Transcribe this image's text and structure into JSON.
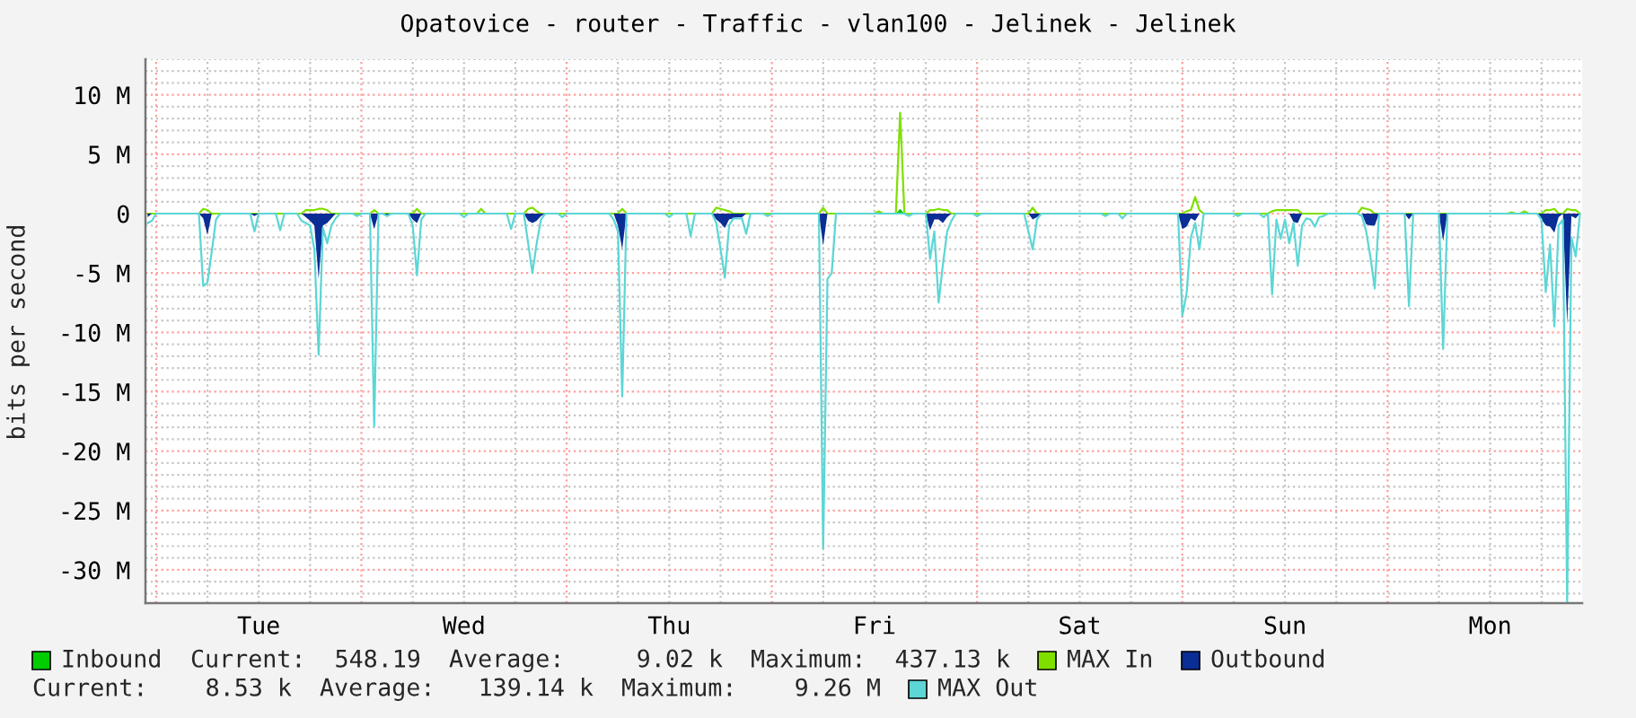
{
  "chart_data": {
    "type": "area",
    "title": "Opatovice - router - Traffic - vlan100 - Jelinek - Jelinek",
    "ylabel": "bits per second",
    "annotations": [
      "Current:  548.19",
      "Average:     9.02 k",
      "Maximum:  437.13 k",
      "Current:    8.53 k",
      "Average:   139.14 k",
      "Maximum:    9.26 M"
    ],
    "categories": [
      null,
      null,
      null,
      null,
      null,
      null,
      null,
      null,
      null,
      null,
      null,
      null,
      null,
      null,
      null,
      null,
      null,
      null,
      null,
      null,
      null,
      null,
      null,
      null,
      null,
      null,
      "Tue",
      null,
      null,
      null,
      null,
      null,
      null,
      null,
      null,
      null,
      null,
      null,
      null,
      null,
      null,
      null,
      null,
      null,
      null,
      null,
      null,
      null,
      null,
      null,
      null,
      null,
      null,
      null,
      null,
      null,
      null,
      null,
      null,
      null,
      null,
      null,
      null,
      null,
      null,
      null,
      null,
      null,
      null,
      null,
      null,
      null,
      null,
      null,
      "Wed",
      null,
      null,
      null,
      null,
      null,
      null,
      null,
      null,
      null,
      null,
      null,
      null,
      null,
      null,
      null,
      null,
      null,
      null,
      null,
      null,
      null,
      null,
      null,
      null,
      null,
      null,
      null,
      null,
      null,
      null,
      null,
      null,
      null,
      null,
      null,
      null,
      null,
      null,
      null,
      null,
      null,
      null,
      null,
      null,
      null,
      null,
      null,
      "Thu",
      null,
      null,
      null,
      null,
      null,
      null,
      null,
      null,
      null,
      null,
      null,
      null,
      null,
      null,
      null,
      null,
      null,
      null,
      null,
      null,
      null,
      null,
      null,
      null,
      null,
      null,
      null,
      null,
      null,
      null,
      null,
      null,
      null,
      null,
      null,
      null,
      null,
      null,
      null,
      null,
      null,
      null,
      null,
      null,
      null,
      null,
      null,
      "Fri",
      null,
      null,
      null,
      null,
      null,
      null,
      null,
      null,
      null,
      null,
      null,
      null,
      null,
      null,
      null,
      null,
      null,
      null,
      null,
      null,
      null,
      null,
      null,
      null,
      null,
      null,
      null,
      null,
      null,
      null,
      null,
      null,
      null,
      null,
      null,
      null,
      null,
      null,
      null,
      null,
      null,
      null,
      null,
      null,
      null,
      null,
      null,
      "Sat",
      null,
      null,
      null,
      null,
      null,
      null,
      null,
      null,
      null,
      null,
      null,
      null,
      null,
      null,
      null,
      null,
      null,
      null,
      null,
      null,
      null,
      null,
      null,
      null,
      null,
      null,
      null,
      null,
      null,
      null,
      null,
      null,
      null,
      null,
      null,
      null,
      null,
      null,
      null,
      null,
      null,
      null,
      null,
      null,
      null,
      null,
      null,
      "Sun",
      null,
      null,
      null,
      null,
      null,
      null,
      null,
      null,
      null,
      null,
      null,
      null,
      null,
      null,
      null,
      null,
      null,
      null,
      null,
      null,
      null,
      null,
      null,
      null,
      null,
      null,
      null,
      null,
      null,
      null,
      null,
      null,
      null,
      null,
      null,
      null,
      null,
      null,
      null,
      null,
      null,
      null,
      null,
      null,
      null,
      null,
      null,
      "Mon",
      null,
      null,
      null,
      null,
      null,
      null,
      null,
      null,
      null,
      null,
      null,
      null,
      null,
      null,
      null,
      null,
      null,
      null,
      null,
      null,
      null
    ],
    "ylim": [
      -32.8,
      13
    ],
    "yticks": [
      {
        "value": -30,
        "label": "-30 M"
      },
      {
        "value": -25,
        "label": "-25 M"
      },
      {
        "value": -20,
        "label": "-20 M"
      },
      {
        "value": -15,
        "label": "-15 M"
      },
      {
        "value": -10,
        "label": "-10 M"
      },
      {
        "value": -5,
        "label": "-5 M"
      },
      0,
      {
        "value": 5,
        "label": "5 M"
      },
      {
        "value": 10,
        "label": "10 M"
      }
    ],
    "grid": true,
    "legend": "bottom",
    "series": [
      {
        "name": "Inbound",
        "color": "#00cc00",
        "values": [
          0,
          0,
          0,
          0,
          0,
          0,
          0,
          0,
          0,
          0,
          0,
          0,
          0,
          0,
          0,
          0,
          0,
          0,
          0,
          0,
          0,
          0,
          0,
          0,
          0,
          0,
          0,
          0,
          0,
          0,
          0,
          0,
          0,
          0,
          0,
          0,
          0,
          0,
          0,
          0,
          0,
          0,
          0,
          0,
          0,
          0,
          0,
          0,
          0,
          0,
          0,
          0,
          0,
          0,
          0,
          0,
          0,
          0,
          0,
          0,
          0,
          0,
          0,
          0,
          0,
          0,
          0,
          0,
          0,
          0,
          0,
          0,
          0,
          0,
          0,
          0,
          0,
          0,
          0,
          0,
          0,
          0,
          0,
          0,
          0,
          0,
          0,
          0,
          0,
          0,
          0,
          0,
          0,
          0,
          0,
          0,
          0,
          0,
          0,
          0,
          0,
          0,
          0,
          0,
          0,
          0,
          0,
          0,
          0,
          0,
          0,
          0,
          0,
          0,
          0,
          0,
          0,
          0,
          0,
          0,
          0,
          0,
          0,
          0,
          0,
          0,
          0,
          0,
          0,
          0,
          0,
          0,
          0,
          0,
          0,
          0,
          0,
          0,
          0,
          0,
          0,
          0,
          0,
          0,
          0,
          0,
          0,
          0,
          0,
          0,
          0,
          0,
          0,
          0,
          0,
          0,
          0,
          0,
          0,
          0,
          0,
          0,
          0,
          0,
          0,
          0,
          0,
          0,
          0,
          0,
          0,
          0,
          0,
          0,
          0,
          0,
          0.4,
          0,
          0,
          0,
          0,
          0,
          0,
          0,
          0,
          0,
          0,
          0,
          0,
          0,
          0,
          0,
          0,
          0,
          0,
          0,
          0,
          0,
          0,
          0,
          0,
          0,
          0,
          0,
          0,
          0,
          0,
          0,
          0,
          0,
          0,
          0,
          0,
          0,
          0,
          0,
          0,
          0,
          0,
          0,
          0,
          0,
          0,
          0,
          0,
          0,
          0,
          0,
          0,
          0,
          0,
          0,
          0,
          0,
          0,
          0,
          0,
          0,
          0,
          0,
          0,
          0,
          0,
          0,
          0,
          0,
          0,
          0,
          0,
          0,
          0,
          0,
          0,
          0,
          0,
          0,
          0,
          0,
          0,
          0,
          0,
          0,
          0,
          0,
          0,
          0,
          0,
          0,
          0,
          0,
          0,
          0,
          0,
          0,
          0,
          0,
          0,
          0,
          0,
          0,
          0,
          0,
          0,
          0,
          0,
          0,
          0,
          0,
          0,
          0,
          0,
          0,
          0,
          0,
          0,
          0,
          0,
          0,
          0,
          0,
          0,
          0,
          0,
          0,
          0,
          0,
          0,
          0,
          0,
          0,
          0,
          0,
          0,
          0,
          0,
          0,
          0,
          0,
          0,
          0,
          0,
          0,
          0,
          0,
          0,
          0,
          0,
          0,
          0,
          0,
          0,
          0,
          0,
          0,
          0,
          0
        ]
      },
      {
        "name": "MAX In",
        "type": "line",
        "color": "#7fe000",
        "values": [
          0,
          0,
          0,
          0,
          0,
          0,
          0,
          0,
          0,
          0,
          0,
          0,
          0,
          0.4,
          0.3,
          0,
          0,
          0,
          0,
          0,
          0,
          0,
          0,
          0,
          0,
          0,
          0,
          0,
          0,
          0,
          0,
          0,
          0,
          0,
          0,
          0,
          0,
          0.3,
          0.3,
          0.3,
          0.4,
          0.4,
          0.3,
          0,
          0,
          0,
          0,
          0,
          0,
          0,
          0,
          0,
          0,
          0.3,
          0,
          0,
          0,
          0,
          0,
          0,
          0,
          0,
          0,
          0.4,
          0,
          0,
          0,
          0,
          0,
          0,
          0,
          0,
          0,
          0,
          0,
          0,
          0,
          0,
          0.4,
          0,
          0,
          0,
          0,
          0,
          0,
          0,
          0,
          0,
          0,
          0.4,
          0.5,
          0.2,
          0,
          0,
          0,
          0,
          0,
          0,
          0,
          0,
          0,
          0,
          0,
          0,
          0,
          0,
          0,
          0,
          0,
          0,
          0,
          0.4,
          0,
          0,
          0,
          0,
          0,
          0,
          0,
          0,
          0,
          0,
          0,
          0,
          0,
          0,
          0,
          0,
          0,
          0,
          0,
          0,
          0,
          0.5,
          0.4,
          0.3,
          0.2,
          0,
          0,
          0,
          0,
          0,
          0,
          0,
          0,
          0,
          0,
          0,
          0,
          0,
          0,
          0,
          0,
          0,
          0,
          0,
          0,
          0,
          0.5,
          0,
          0,
          0,
          0,
          0,
          0,
          0,
          0,
          0,
          0,
          0,
          0,
          0.2,
          0,
          0,
          0,
          0,
          8.5,
          0,
          0,
          0,
          0,
          0,
          0,
          0.3,
          0.3,
          0.4,
          0.3,
          0.3,
          0,
          0,
          0,
          0,
          0,
          0,
          0,
          0,
          0,
          0,
          0,
          0,
          0,
          0,
          0,
          0,
          0,
          0,
          0,
          0.5,
          0,
          0,
          0,
          0,
          0,
          0,
          0,
          0,
          0,
          0,
          0,
          0,
          0,
          0,
          0,
          0,
          0,
          0,
          0,
          0,
          0,
          0,
          0,
          0,
          0,
          0,
          0,
          0,
          0,
          0,
          0,
          0,
          0,
          0,
          0,
          0.2,
          0.3,
          1.4,
          0.3,
          0,
          0,
          0,
          0,
          0,
          0,
          0,
          0,
          0,
          0,
          0,
          0,
          0,
          0,
          0,
          0,
          0.2,
          0.3,
          0.3,
          0.3,
          0.3,
          0.3,
          0.3,
          0,
          0,
          0,
          0,
          0,
          0,
          0,
          0,
          0,
          0,
          0,
          0,
          0,
          0,
          0.5,
          0.4,
          0.3,
          0,
          0,
          0,
          0,
          0,
          0,
          0,
          0,
          0,
          0,
          0,
          0,
          0,
          0,
          0,
          0,
          0,
          0,
          0,
          0,
          0,
          0,
          0,
          0,
          0,
          0,
          0,
          0,
          0,
          0,
          0,
          0,
          0.1,
          0,
          0,
          0.2,
          0,
          0,
          0,
          0,
          0.3,
          0.3,
          0.4,
          0,
          0,
          0.4,
          0.3,
          0.3,
          0
        ]
      },
      {
        "name": "Outbound",
        "color": "#0a2d96",
        "values": [
          -0.3,
          0,
          0,
          0,
          0,
          0,
          0,
          0,
          0,
          0,
          0,
          0,
          0,
          -0.4,
          -1.8,
          0,
          0,
          0,
          0,
          0,
          0,
          0,
          0,
          0,
          0,
          -0.2,
          0,
          0,
          0,
          0,
          0,
          0,
          0,
          0,
          0,
          0,
          0,
          -0.3,
          -0.6,
          -1.0,
          -5.5,
          -1.0,
          -0.8,
          -0.4,
          0,
          0,
          0,
          0,
          0,
          0,
          0,
          0,
          0,
          -1.3,
          0,
          0,
          -0.2,
          0,
          0,
          0,
          0,
          0,
          -0.5,
          -0.8,
          0,
          0,
          0,
          0,
          0,
          0,
          0,
          0,
          0,
          0,
          0,
          0,
          0,
          0,
          0,
          0,
          0,
          0,
          0,
          0,
          0,
          0,
          0,
          0,
          0,
          -0.6,
          -0.8,
          -0.6,
          -0.2,
          0,
          0,
          0,
          0,
          0,
          0,
          0,
          0,
          0,
          0,
          0,
          0,
          0,
          0,
          0,
          0,
          0,
          -1.0,
          -3.0,
          0,
          0,
          0,
          0,
          0,
          0,
          0,
          0,
          0,
          0,
          0,
          0,
          0,
          0,
          0,
          0,
          0,
          0,
          0,
          0,
          0,
          -0.5,
          -0.8,
          -1.2,
          -0.5,
          -0.4,
          -0.3,
          -0.3,
          0,
          0,
          0,
          0,
          0,
          0,
          0,
          0,
          0,
          0,
          0,
          0,
          0,
          0,
          0,
          0,
          0,
          0,
          -2.7,
          0,
          0,
          0,
          0,
          0,
          0,
          0,
          0,
          0,
          0,
          0,
          0,
          0,
          0,
          0,
          0,
          0,
          0,
          0,
          0,
          0,
          0,
          0,
          0,
          -1.4,
          -0.5,
          -0.5,
          -0.8,
          -0.3,
          0,
          0,
          0,
          0,
          0,
          0,
          0,
          0,
          0,
          0,
          0,
          0,
          0,
          0,
          0,
          0,
          0,
          0,
          0,
          -0.5,
          -0.3,
          0,
          0,
          0,
          0,
          0,
          0,
          0,
          0,
          0,
          0,
          0,
          0,
          0,
          0,
          0,
          0,
          0,
          0,
          0,
          0,
          0,
          0,
          0,
          0,
          0,
          0,
          0,
          0,
          0,
          0,
          0,
          0,
          0,
          -1.3,
          -1.1,
          -0.4,
          -0.6,
          0,
          0,
          0,
          0,
          0,
          0,
          0,
          0,
          0,
          0,
          0,
          0,
          0,
          0,
          0,
          0,
          0,
          0,
          0,
          0,
          0,
          0,
          -0.7,
          -0.8,
          0,
          0,
          0,
          0,
          0,
          0,
          0,
          0,
          0,
          0,
          0,
          0,
          0,
          0,
          0,
          -0.9,
          -1.0,
          -1.0,
          0,
          0,
          0,
          0,
          0,
          0,
          0,
          -0.5,
          0,
          0,
          0,
          0,
          0,
          0,
          0,
          -2.3,
          0,
          0,
          0,
          0,
          0,
          0,
          0,
          0,
          0,
          0,
          0,
          0,
          0,
          0,
          0,
          0,
          0,
          0,
          0,
          0,
          0,
          0,
          -0.5,
          -1.0,
          -1.1,
          -1.6,
          -0.3,
          0,
          -9.3,
          -0.2,
          -0.4,
          0
        ]
      },
      {
        "name": "MAX Out",
        "type": "line",
        "color": "#5cd6d6",
        "values": [
          -0.8,
          -0.6,
          0,
          0,
          0,
          0,
          0,
          0,
          0,
          0,
          0,
          0,
          0,
          -6.1,
          -5.8,
          -3.2,
          -0.5,
          0,
          0,
          0,
          0,
          0,
          0,
          0,
          0,
          -1.5,
          0,
          0,
          0,
          0,
          0,
          -1.4,
          0,
          0,
          0,
          0,
          -0.6,
          -0.8,
          -1.0,
          -3.0,
          -11.9,
          -1.2,
          -2.5,
          -1.0,
          -0.4,
          0,
          0,
          0,
          0,
          -0.2,
          0,
          0,
          0,
          -17.9,
          0,
          0,
          -0.2,
          0,
          0,
          0,
          0,
          0,
          -1.0,
          -5.2,
          -0.5,
          0,
          0,
          0,
          0,
          0,
          0,
          0,
          0,
          0,
          -0.3,
          0,
          0,
          0,
          0,
          0,
          0,
          0,
          0,
          0,
          0,
          -1.3,
          0,
          0,
          0,
          -2.5,
          -5.0,
          -2.5,
          -0.5,
          0,
          0,
          0,
          0,
          -0.3,
          0,
          0,
          0,
          0,
          0,
          0,
          0,
          0,
          0,
          0,
          0,
          -0.5,
          -1.5,
          -15.4,
          0,
          0,
          0,
          0,
          0,
          0,
          0,
          0,
          0,
          0,
          -0.3,
          0,
          0,
          0,
          0,
          -1.9,
          0,
          0,
          0,
          0,
          0,
          -0.8,
          -3.0,
          -5.4,
          -1.0,
          -0.4,
          -0.4,
          -0.4,
          -1.7,
          0,
          0,
          0,
          0,
          -0.2,
          0,
          0,
          0,
          0,
          0,
          0,
          0,
          0,
          0,
          0,
          0,
          0,
          -28.2,
          -5.5,
          -5.0,
          0,
          0,
          0,
          0,
          0,
          0,
          0,
          0,
          0,
          0,
          0,
          0,
          0,
          0,
          0,
          0,
          0,
          -0.2,
          0,
          0,
          0,
          0,
          -3.8,
          -1.5,
          -7.5,
          -4.3,
          -1.5,
          -0.6,
          0,
          0,
          0,
          0,
          0,
          -0.2,
          0,
          0,
          0,
          0,
          0,
          0,
          0,
          0,
          0,
          0,
          0,
          -1.5,
          -3.0,
          -0.5,
          0,
          0,
          0,
          0,
          0,
          0,
          0,
          0,
          0,
          0,
          0,
          0,
          0,
          0,
          0,
          -0.2,
          0,
          0,
          0,
          -0.4,
          0,
          0,
          0,
          0,
          0,
          0,
          0,
          0,
          0,
          0,
          0,
          0,
          0,
          -8.6,
          -6.7,
          -2.0,
          -0.8,
          -3.0,
          0,
          0,
          0,
          0,
          0,
          0,
          0,
          0,
          -0.2,
          0,
          0,
          0,
          0,
          0,
          -0.3,
          0,
          -6.8,
          -0.5,
          -2.1,
          -0.5,
          -2.5,
          -0.8,
          -4.4,
          -1.0,
          -0.4,
          -0.5,
          -1.1,
          -0.3,
          -0.2,
          0,
          0,
          0,
          0,
          0,
          0,
          0,
          0,
          -0.2,
          -1.5,
          -3.7,
          -6.3,
          0,
          0,
          0,
          0,
          0,
          0,
          0,
          -7.8,
          0,
          0,
          0,
          0,
          0,
          0,
          0,
          -11.4,
          0,
          0,
          0,
          0,
          0,
          0,
          0,
          0,
          0,
          0,
          0,
          0,
          0,
          0,
          0,
          0,
          0,
          0,
          0,
          0,
          0,
          0,
          -0.5,
          -6.6,
          -2.6,
          -9.5,
          -1.0,
          -0.5,
          -32.8,
          -2.0,
          -3.6,
          0
        ]
      }
    ]
  }
}
